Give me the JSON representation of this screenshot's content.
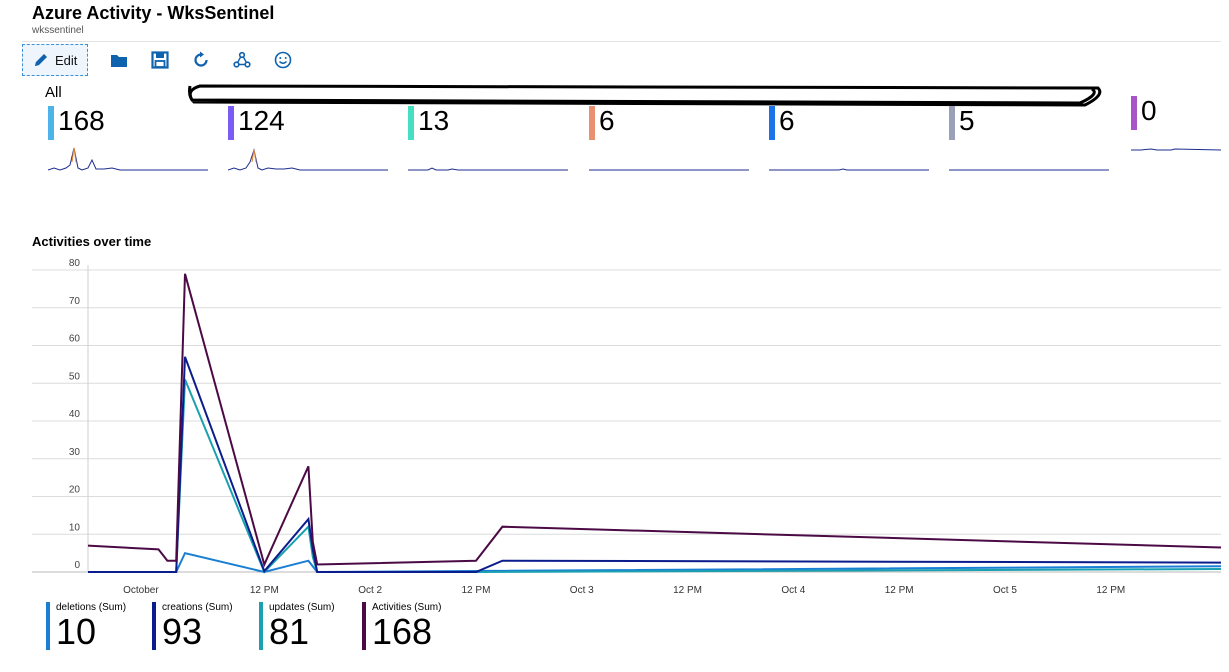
{
  "header": {
    "title": "Azure Activity - WksSentinel",
    "subtitle": "wkssentinel"
  },
  "toolbar": {
    "edit_label": "Edit",
    "icons": [
      "pencil-icon",
      "folder-icon",
      "save-icon",
      "refresh-icon",
      "share-icon",
      "smiley-icon"
    ]
  },
  "summary": {
    "all_label": "All",
    "tiles": [
      {
        "value": "168",
        "color": "#4db3e8"
      },
      {
        "value": "124",
        "color": "#7b5bf5"
      },
      {
        "value": "13",
        "color": "#45e0c2"
      },
      {
        "value": "6",
        "color": "#e8906f"
      },
      {
        "value": "6",
        "color": "#1a73e8"
      },
      {
        "value": "5",
        "color": "#9aa0b8"
      },
      {
        "value": "0",
        "color": "#a855c9"
      }
    ]
  },
  "chart_data": {
    "type": "line",
    "title": "Activities over time",
    "ylim": [
      0,
      80
    ],
    "yticks": [
      0,
      10,
      20,
      30,
      40,
      50,
      60,
      70,
      80
    ],
    "x_tick_labels": [
      "October",
      "12 PM",
      "Oct 2",
      "12 PM",
      "Oct 3",
      "12 PM",
      "Oct 4",
      "12 PM",
      "Oct 5",
      "12 PM"
    ],
    "x_range_hours": [
      -8,
      120.5
    ],
    "grid": true,
    "series": [
      {
        "name": "Activities (Sum)",
        "color": "#4b0a45",
        "total": "168",
        "points": [
          [
            -8,
            7
          ],
          [
            0,
            6
          ],
          [
            1,
            3
          ],
          [
            2,
            3
          ],
          [
            3,
            79
          ],
          [
            12,
            2
          ],
          [
            17,
            28
          ],
          [
            17.5,
            8
          ],
          [
            18,
            2
          ],
          [
            36,
            3
          ],
          [
            39,
            12
          ],
          [
            120.5,
            6.5
          ]
        ]
      },
      {
        "name": "creations (Sum)",
        "color": "#0b1c8c",
        "total": "93",
        "points": [
          [
            -8,
            0
          ],
          [
            2,
            0
          ],
          [
            3,
            57
          ],
          [
            12,
            0.2
          ],
          [
            17,
            14
          ],
          [
            17.5,
            6
          ],
          [
            18,
            0
          ],
          [
            36,
            0
          ],
          [
            39,
            3
          ],
          [
            120.5,
            2.5
          ]
        ]
      },
      {
        "name": "updates (Sum)",
        "color": "#1aa0b0",
        "total": "81",
        "points": [
          [
            -8,
            0
          ],
          [
            2,
            0
          ],
          [
            3,
            51
          ],
          [
            12,
            0
          ],
          [
            17,
            12
          ],
          [
            17.5,
            4
          ],
          [
            18,
            0
          ],
          [
            36,
            0
          ],
          [
            120.5,
            0.8
          ]
        ]
      },
      {
        "name": "deletions (Sum)",
        "color": "#1a7fd4",
        "total": "10",
        "points": [
          [
            -8,
            0
          ],
          [
            2,
            0
          ],
          [
            3,
            5
          ],
          [
            12,
            0
          ],
          [
            17,
            3
          ],
          [
            18,
            0
          ],
          [
            120.5,
            1.5
          ]
        ]
      }
    ]
  },
  "legend": [
    {
      "label": "deletions (Sum)",
      "value": "10",
      "color": "#1a7fd4"
    },
    {
      "label": "creations (Sum)",
      "value": "93",
      "color": "#0b1c8c"
    },
    {
      "label": "updates (Sum)",
      "value": "81",
      "color": "#1aa0b0"
    },
    {
      "label": "Activities (Sum)",
      "value": "168",
      "color": "#4b0a45"
    }
  ]
}
